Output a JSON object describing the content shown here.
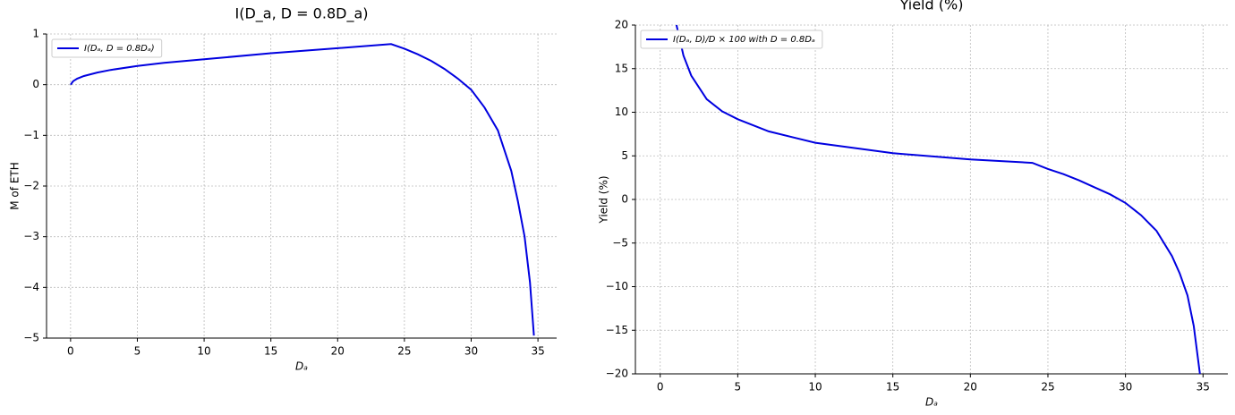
{
  "chart_data": [
    {
      "type": "line",
      "title": "I(D_a, D = 0.8D_a)",
      "xlabel": "Dₐ",
      "ylabel": "M of ETH",
      "x": [
        0,
        0.2,
        0.5,
        1,
        2,
        3,
        5,
        7,
        10,
        15,
        20,
        24,
        25,
        26,
        27,
        28,
        29,
        30,
        31,
        32,
        33,
        33.5,
        34,
        34.4,
        34.7
      ],
      "series": [
        {
          "name": "I(Dₐ, D = 0.8Dₐ)",
          "color": "#0000e0",
          "values": [
            0,
            0.07,
            0.12,
            0.17,
            0.24,
            0.29,
            0.37,
            0.43,
            0.5,
            0.62,
            0.72,
            0.8,
            0.71,
            0.6,
            0.47,
            0.31,
            0.12,
            -0.1,
            -0.45,
            -0.9,
            -1.7,
            -2.3,
            -3.0,
            -3.9,
            -4.95
          ]
        }
      ],
      "xlim": [
        -1.8,
        36.4
      ],
      "ylim": [
        -5,
        1
      ],
      "xticks": [
        0,
        5,
        10,
        15,
        20,
        25,
        30,
        35
      ],
      "yticks": [
        {
          "value": -5,
          "label": "−5"
        },
        {
          "value": -4,
          "label": "−4"
        },
        {
          "value": -3,
          "label": "−3"
        },
        {
          "value": -2,
          "label": "−2"
        },
        {
          "value": -1,
          "label": "−1"
        },
        0,
        1
      ],
      "grid": true,
      "legend": "upper left"
    },
    {
      "type": "line",
      "title": "Yield (%)",
      "xlabel": "Dₐ",
      "ylabel": "Yield (%)",
      "x": [
        1.05,
        1.5,
        2,
        3,
        4,
        5,
        7,
        10,
        15,
        20,
        24,
        25,
        26,
        27,
        28,
        29,
        30,
        31,
        32,
        33,
        33.5,
        34,
        34.4,
        34.8
      ],
      "series": [
        {
          "name": "I(Dₐ, D)/D × 100 with D = 0.8Dₐ",
          "color": "#0000e0",
          "values": [
            20,
            16.5,
            14.2,
            11.5,
            10.1,
            9.2,
            7.8,
            6.5,
            5.3,
            4.6,
            4.2,
            3.5,
            2.9,
            2.2,
            1.4,
            0.6,
            -0.4,
            -1.8,
            -3.6,
            -6.5,
            -8.5,
            -11,
            -14.5,
            -20
          ]
        }
      ],
      "xlim": [
        -1.6,
        36.6
      ],
      "ylim": [
        -20,
        20
      ],
      "xticks": [
        0,
        5,
        10,
        15,
        20,
        25,
        30,
        35
      ],
      "yticks": [
        {
          "value": -20,
          "label": "−20"
        },
        {
          "value": -15,
          "label": "−15"
        },
        {
          "value": -10,
          "label": "−10"
        },
        {
          "value": -5,
          "label": "−5"
        },
        0,
        5,
        10,
        15,
        20
      ],
      "grid": true,
      "legend": "upper left"
    }
  ]
}
